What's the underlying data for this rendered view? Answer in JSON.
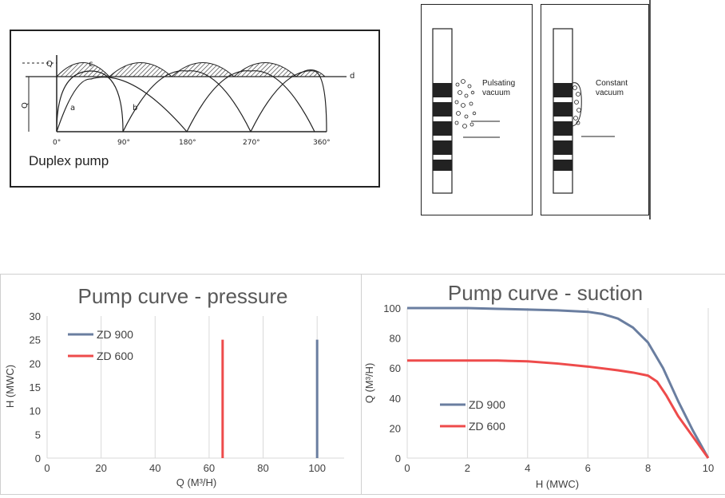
{
  "duplex": {
    "title": "Duplex pump",
    "y_labels": [
      "Q",
      "Q"
    ],
    "curve_labels": [
      "a",
      "b",
      "c",
      "d"
    ],
    "angles": [
      "0°",
      "90°",
      "180°",
      "270°",
      "360°"
    ]
  },
  "vacuum": {
    "left_label_1": "Pulsating",
    "left_label_2": "vacuum",
    "right_label_1": "Constant",
    "right_label_2": "vacuum"
  },
  "chart_data": [
    {
      "type": "line",
      "title": "Pump curve - pressure",
      "xlabel": "Q (M³/H)",
      "ylabel": "H (MWC)",
      "xlim": [
        0,
        110
      ],
      "ylim": [
        0,
        30
      ],
      "xticks": [
        "0",
        "20",
        "40",
        "60",
        "80",
        "100"
      ],
      "yticks": [
        "0",
        "5",
        "10",
        "15",
        "20",
        "25",
        "30"
      ],
      "grid": "vertical",
      "legend": "top-left",
      "series": [
        {
          "name": "ZD 900",
          "color": "#6a7ea0",
          "x": [
            100,
            100
          ],
          "y": [
            0,
            25
          ]
        },
        {
          "name": "ZD 600",
          "color": "#ee4b4b",
          "x": [
            65,
            65
          ],
          "y": [
            0,
            25
          ]
        }
      ]
    },
    {
      "type": "line",
      "title": "Pump curve - suction",
      "xlabel": "H (MWC)",
      "ylabel": "Q (M³/H)",
      "xlim": [
        0,
        10
      ],
      "ylim": [
        0,
        100
      ],
      "xticks": [
        "0",
        "2",
        "4",
        "6",
        "8",
        "10"
      ],
      "yticks": [
        "0",
        "20",
        "40",
        "60",
        "80",
        "100"
      ],
      "grid": "vertical",
      "legend": "bottom-left",
      "series": [
        {
          "name": "ZD 900",
          "color": "#6a7ea0",
          "x": [
            0,
            2,
            3,
            4,
            5,
            6,
            6.5,
            7,
            7.5,
            8,
            8.5,
            9,
            9.5,
            10
          ],
          "y": [
            100,
            100,
            99.5,
            99,
            98.5,
            97.5,
            96,
            93,
            87,
            77,
            60,
            38,
            18,
            0
          ]
        },
        {
          "name": "ZD 600",
          "color": "#ee4b4b",
          "x": [
            0,
            2,
            3,
            4,
            5,
            6,
            7,
            7.5,
            8,
            8.3,
            8.6,
            9,
            9.5,
            10
          ],
          "y": [
            65,
            65,
            65,
            64.5,
            63,
            61,
            58.5,
            57,
            55,
            51,
            42,
            28,
            14,
            0
          ]
        }
      ]
    }
  ]
}
